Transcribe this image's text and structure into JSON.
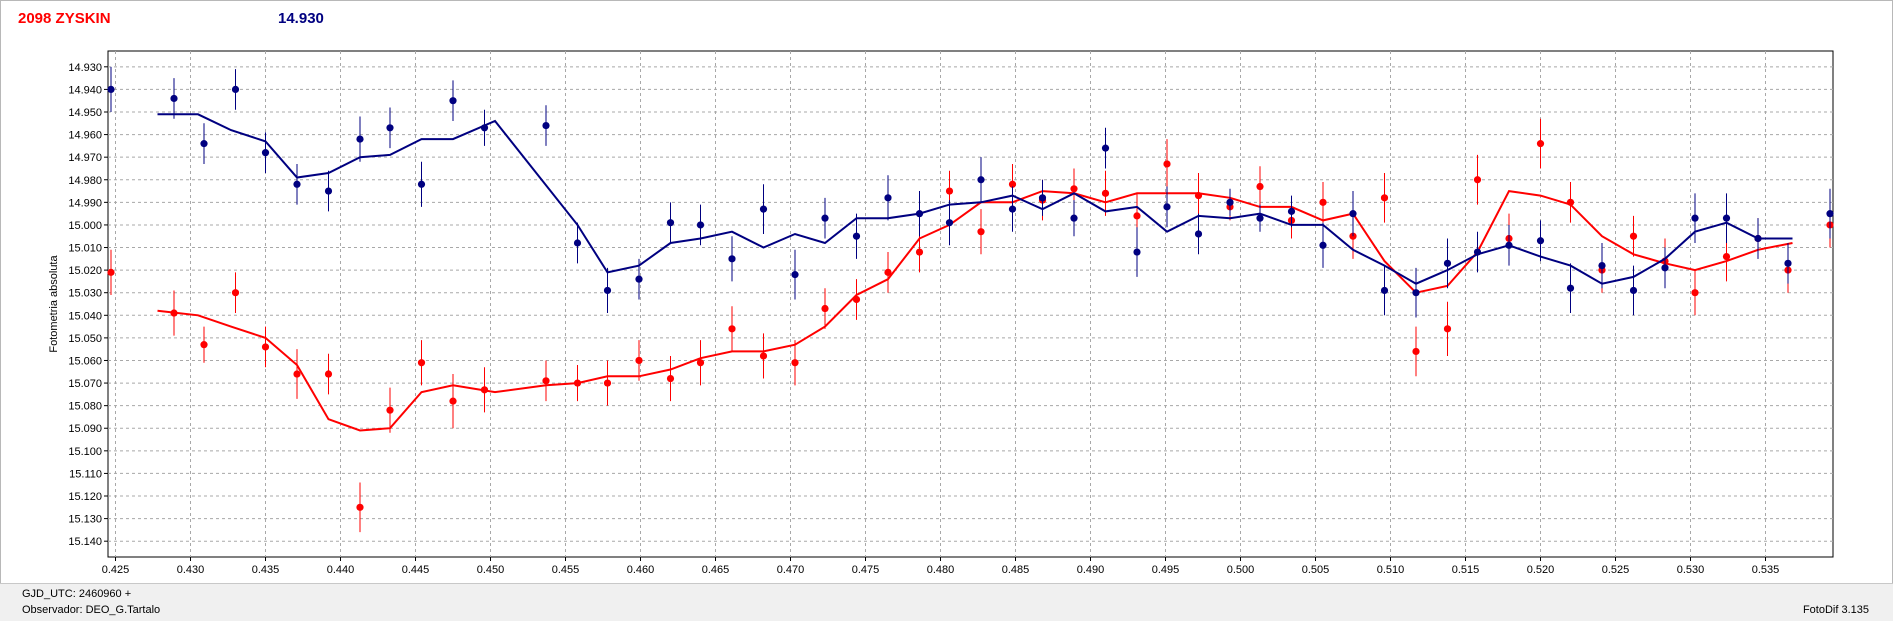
{
  "header": {
    "title": "2098 ZYSKIN",
    "magnitude": "14.930"
  },
  "footer": {
    "gjd": "GJD_UTC: 2460960 +",
    "observer": "Observador: DEO_G.Tartalo",
    "software": "FotoDif 3.135"
  },
  "colors": {
    "title": "#ff0000",
    "series_blue": "#000080",
    "series_red": "#ff0000"
  },
  "chart_data": {
    "type": "scatter",
    "ylabel": "Fotometria absoluta",
    "xlabel": "",
    "xlim": [
      0.4245,
      0.5395
    ],
    "ylim": [
      14.923,
      15.147
    ],
    "y_inverted": true,
    "grid": true,
    "x_ticks": [
      "0.425",
      "0.430",
      "0.435",
      "0.440",
      "0.445",
      "0.450",
      "0.455",
      "0.460",
      "0.465",
      "0.470",
      "0.475",
      "0.480",
      "0.485",
      "0.490",
      "0.495",
      "0.500",
      "0.505",
      "0.510",
      "0.515",
      "0.520",
      "0.525",
      "0.530",
      "0.535"
    ],
    "y_ticks": [
      "14.930",
      "14.940",
      "14.950",
      "14.960",
      "14.970",
      "14.980",
      "14.990",
      "15.000",
      "15.010",
      "15.020",
      "15.030",
      "15.040",
      "15.050",
      "15.060",
      "15.070",
      "15.080",
      "15.090",
      "15.100",
      "15.110",
      "15.120",
      "15.130",
      "15.140"
    ],
    "series": [
      {
        "color": "#000080",
        "points": [
          {
            "x": 0.4247,
            "y": 14.94,
            "err": 0.01
          },
          {
            "x": 0.4289,
            "y": 14.944,
            "err": 0.009
          },
          {
            "x": 0.4309,
            "y": 14.964,
            "err": 0.009
          },
          {
            "x": 0.433,
            "y": 14.94,
            "err": 0.009
          },
          {
            "x": 0.435,
            "y": 14.968,
            "err": 0.009
          },
          {
            "x": 0.4371,
            "y": 14.982,
            "err": 0.009
          },
          {
            "x": 0.4392,
            "y": 14.985,
            "err": 0.009
          },
          {
            "x": 0.4413,
            "y": 14.962,
            "err": 0.01
          },
          {
            "x": 0.4433,
            "y": 14.957,
            "err": 0.009
          },
          {
            "x": 0.4454,
            "y": 14.982,
            "err": 0.01
          },
          {
            "x": 0.4475,
            "y": 14.945,
            "err": 0.009
          },
          {
            "x": 0.4496,
            "y": 14.957,
            "err": 0.008
          },
          {
            "x": 0.4537,
            "y": 14.956,
            "err": 0.009
          },
          {
            "x": 0.4558,
            "y": 15.008,
            "err": 0.009
          },
          {
            "x": 0.4578,
            "y": 15.029,
            "err": 0.01
          },
          {
            "x": 0.4599,
            "y": 15.024,
            "err": 0.009
          },
          {
            "x": 0.462,
            "y": 14.999,
            "err": 0.009
          },
          {
            "x": 0.464,
            "y": 15.0,
            "err": 0.009
          },
          {
            "x": 0.4661,
            "y": 15.015,
            "err": 0.01
          },
          {
            "x": 0.4682,
            "y": 14.993,
            "err": 0.011
          },
          {
            "x": 0.4703,
            "y": 15.022,
            "err": 0.011
          },
          {
            "x": 0.4723,
            "y": 14.997,
            "err": 0.009
          },
          {
            "x": 0.4744,
            "y": 15.005,
            "err": 0.01
          },
          {
            "x": 0.4765,
            "y": 14.988,
            "err": 0.01
          },
          {
            "x": 0.4786,
            "y": 14.995,
            "err": 0.01
          },
          {
            "x": 0.4806,
            "y": 14.999,
            "err": 0.01
          },
          {
            "x": 0.4827,
            "y": 14.98,
            "err": 0.01
          },
          {
            "x": 0.4848,
            "y": 14.993,
            "err": 0.01
          },
          {
            "x": 0.4868,
            "y": 14.988,
            "err": 0.008
          },
          {
            "x": 0.4889,
            "y": 14.997,
            "err": 0.008
          },
          {
            "x": 0.491,
            "y": 14.966,
            "err": 0.009
          },
          {
            "x": 0.4931,
            "y": 15.012,
            "err": 0.011
          },
          {
            "x": 0.4951,
            "y": 14.992,
            "err": 0.009
          },
          {
            "x": 0.4972,
            "y": 15.004,
            "err": 0.009
          },
          {
            "x": 0.4993,
            "y": 14.99,
            "err": 0.006
          },
          {
            "x": 0.5013,
            "y": 14.997,
            "err": 0.006
          },
          {
            "x": 0.5034,
            "y": 14.994,
            "err": 0.007
          },
          {
            "x": 0.5055,
            "y": 15.009,
            "err": 0.01
          },
          {
            "x": 0.5075,
            "y": 14.995,
            "err": 0.01
          },
          {
            "x": 0.5096,
            "y": 15.029,
            "err": 0.011
          },
          {
            "x": 0.5117,
            "y": 15.03,
            "err": 0.011
          },
          {
            "x": 0.5138,
            "y": 15.017,
            "err": 0.011
          },
          {
            "x": 0.5158,
            "y": 15.012,
            "err": 0.009
          },
          {
            "x": 0.5179,
            "y": 15.009,
            "err": 0.009
          },
          {
            "x": 0.52,
            "y": 15.007,
            "err": 0.009
          },
          {
            "x": 0.522,
            "y": 15.028,
            "err": 0.011
          },
          {
            "x": 0.5241,
            "y": 15.018,
            "err": 0.01
          },
          {
            "x": 0.5262,
            "y": 15.029,
            "err": 0.011
          },
          {
            "x": 0.5283,
            "y": 15.019,
            "err": 0.009
          },
          {
            "x": 0.5303,
            "y": 14.997,
            "err": 0.011
          },
          {
            "x": 0.5324,
            "y": 14.997,
            "err": 0.011
          },
          {
            "x": 0.5345,
            "y": 15.006,
            "err": 0.009
          },
          {
            "x": 0.5365,
            "y": 15.017,
            "err": 0.009
          },
          {
            "x": 0.5393,
            "y": 14.995,
            "err": 0.011
          }
        ],
        "trend": [
          {
            "x": 0.4278,
            "y": 14.951
          },
          {
            "x": 0.4305,
            "y": 14.951
          },
          {
            "x": 0.4327,
            "y": 14.958
          },
          {
            "x": 0.435,
            "y": 14.963
          },
          {
            "x": 0.4371,
            "y": 14.979
          },
          {
            "x": 0.4392,
            "y": 14.977
          },
          {
            "x": 0.4413,
            "y": 14.97
          },
          {
            "x": 0.4433,
            "y": 14.969
          },
          {
            "x": 0.4454,
            "y": 14.962
          },
          {
            "x": 0.4475,
            "y": 14.962
          },
          {
            "x": 0.4503,
            "y": 14.954
          },
          {
            "x": 0.4558,
            "y": 15.0
          },
          {
            "x": 0.4578,
            "y": 15.021
          },
          {
            "x": 0.4599,
            "y": 15.018
          },
          {
            "x": 0.462,
            "y": 15.008
          },
          {
            "x": 0.464,
            "y": 15.006
          },
          {
            "x": 0.4661,
            "y": 15.003
          },
          {
            "x": 0.4682,
            "y": 15.01
          },
          {
            "x": 0.4703,
            "y": 15.004
          },
          {
            "x": 0.4723,
            "y": 15.008
          },
          {
            "x": 0.4744,
            "y": 14.997
          },
          {
            "x": 0.4765,
            "y": 14.997
          },
          {
            "x": 0.4786,
            "y": 14.995
          },
          {
            "x": 0.4806,
            "y": 14.991
          },
          {
            "x": 0.4827,
            "y": 14.99
          },
          {
            "x": 0.4848,
            "y": 14.987
          },
          {
            "x": 0.4868,
            "y": 14.993
          },
          {
            "x": 0.4889,
            "y": 14.986
          },
          {
            "x": 0.491,
            "y": 14.994
          },
          {
            "x": 0.4931,
            "y": 14.992
          },
          {
            "x": 0.4951,
            "y": 15.003
          },
          {
            "x": 0.4972,
            "y": 14.996
          },
          {
            "x": 0.4993,
            "y": 14.997
          },
          {
            "x": 0.5013,
            "y": 14.995
          },
          {
            "x": 0.5034,
            "y": 15.0
          },
          {
            "x": 0.5055,
            "y": 15.0
          },
          {
            "x": 0.5075,
            "y": 15.011
          },
          {
            "x": 0.5096,
            "y": 15.018
          },
          {
            "x": 0.5117,
            "y": 15.026
          },
          {
            "x": 0.5138,
            "y": 15.02
          },
          {
            "x": 0.5158,
            "y": 15.013
          },
          {
            "x": 0.5179,
            "y": 15.009
          },
          {
            "x": 0.52,
            "y": 15.014
          },
          {
            "x": 0.522,
            "y": 15.018
          },
          {
            "x": 0.5241,
            "y": 15.026
          },
          {
            "x": 0.5262,
            "y": 15.023
          },
          {
            "x": 0.5283,
            "y": 15.015
          },
          {
            "x": 0.5303,
            "y": 15.003
          },
          {
            "x": 0.5324,
            "y": 14.999
          },
          {
            "x": 0.5345,
            "y": 15.006
          },
          {
            "x": 0.5368,
            "y": 15.006
          }
        ]
      },
      {
        "color": "#ff0000",
        "points": [
          {
            "x": 0.4247,
            "y": 15.021,
            "err": 0.01
          },
          {
            "x": 0.4289,
            "y": 15.039,
            "err": 0.01
          },
          {
            "x": 0.4309,
            "y": 15.053,
            "err": 0.008
          },
          {
            "x": 0.433,
            "y": 15.03,
            "err": 0.009
          },
          {
            "x": 0.435,
            "y": 15.054,
            "err": 0.009
          },
          {
            "x": 0.4371,
            "y": 15.066,
            "err": 0.011
          },
          {
            "x": 0.4392,
            "y": 15.066,
            "err": 0.009
          },
          {
            "x": 0.4413,
            "y": 15.125,
            "err": 0.011
          },
          {
            "x": 0.4433,
            "y": 15.082,
            "err": 0.01
          },
          {
            "x": 0.4454,
            "y": 15.061,
            "err": 0.01
          },
          {
            "x": 0.4475,
            "y": 15.078,
            "err": 0.012
          },
          {
            "x": 0.4496,
            "y": 15.073,
            "err": 0.01
          },
          {
            "x": 0.4537,
            "y": 15.069,
            "err": 0.009
          },
          {
            "x": 0.4558,
            "y": 15.07,
            "err": 0.008
          },
          {
            "x": 0.4578,
            "y": 15.07,
            "err": 0.01
          },
          {
            "x": 0.4599,
            "y": 15.06,
            "err": 0.009
          },
          {
            "x": 0.462,
            "y": 15.068,
            "err": 0.01
          },
          {
            "x": 0.464,
            "y": 15.061,
            "err": 0.01
          },
          {
            "x": 0.4661,
            "y": 15.046,
            "err": 0.01
          },
          {
            "x": 0.4682,
            "y": 15.058,
            "err": 0.01
          },
          {
            "x": 0.4703,
            "y": 15.061,
            "err": 0.01
          },
          {
            "x": 0.4723,
            "y": 15.037,
            "err": 0.009
          },
          {
            "x": 0.4744,
            "y": 15.033,
            "err": 0.009
          },
          {
            "x": 0.4765,
            "y": 15.021,
            "err": 0.009
          },
          {
            "x": 0.4786,
            "y": 15.012,
            "err": 0.009
          },
          {
            "x": 0.4806,
            "y": 14.985,
            "err": 0.009
          },
          {
            "x": 0.4827,
            "y": 15.003,
            "err": 0.01
          },
          {
            "x": 0.4848,
            "y": 14.982,
            "err": 0.009
          },
          {
            "x": 0.4868,
            "y": 14.989,
            "err": 0.009
          },
          {
            "x": 0.4889,
            "y": 14.984,
            "err": 0.009
          },
          {
            "x": 0.491,
            "y": 14.986,
            "err": 0.01
          },
          {
            "x": 0.4931,
            "y": 14.996,
            "err": 0.01
          },
          {
            "x": 0.4951,
            "y": 14.973,
            "err": 0.011
          },
          {
            "x": 0.4972,
            "y": 14.987,
            "err": 0.01
          },
          {
            "x": 0.4993,
            "y": 14.992,
            "err": 0.006
          },
          {
            "x": 0.5013,
            "y": 14.983,
            "err": 0.009
          },
          {
            "x": 0.5034,
            "y": 14.998,
            "err": 0.008
          },
          {
            "x": 0.5055,
            "y": 14.99,
            "err": 0.009
          },
          {
            "x": 0.5075,
            "y": 15.005,
            "err": 0.01
          },
          {
            "x": 0.5096,
            "y": 14.988,
            "err": 0.011
          },
          {
            "x": 0.5117,
            "y": 15.056,
            "err": 0.011
          },
          {
            "x": 0.5138,
            "y": 15.046,
            "err": 0.012
          },
          {
            "x": 0.5158,
            "y": 14.98,
            "err": 0.011
          },
          {
            "x": 0.5179,
            "y": 15.006,
            "err": 0.011
          },
          {
            "x": 0.52,
            "y": 14.964,
            "err": 0.011
          },
          {
            "x": 0.522,
            "y": 14.99,
            "err": 0.009
          },
          {
            "x": 0.5241,
            "y": 15.02,
            "err": 0.01
          },
          {
            "x": 0.5262,
            "y": 15.005,
            "err": 0.009
          },
          {
            "x": 0.5283,
            "y": 15.016,
            "err": 0.01
          },
          {
            "x": 0.5303,
            "y": 15.03,
            "err": 0.01
          },
          {
            "x": 0.5324,
            "y": 15.014,
            "err": 0.011
          },
          {
            "x": 0.5345,
            "y": 15.006,
            "err": 0.009
          },
          {
            "x": 0.5365,
            "y": 15.02,
            "err": 0.01
          },
          {
            "x": 0.5393,
            "y": 15.0,
            "err": 0.01
          }
        ],
        "trend": [
          {
            "x": 0.4278,
            "y": 15.038
          },
          {
            "x": 0.4305,
            "y": 15.04
          },
          {
            "x": 0.4327,
            "y": 15.045
          },
          {
            "x": 0.435,
            "y": 15.05
          },
          {
            "x": 0.4371,
            "y": 15.062
          },
          {
            "x": 0.4392,
            "y": 15.086
          },
          {
            "x": 0.4413,
            "y": 15.091
          },
          {
            "x": 0.4433,
            "y": 15.09
          },
          {
            "x": 0.4454,
            "y": 15.074
          },
          {
            "x": 0.4475,
            "y": 15.071
          },
          {
            "x": 0.4503,
            "y": 15.074
          },
          {
            "x": 0.4537,
            "y": 15.071
          },
          {
            "x": 0.4558,
            "y": 15.07
          },
          {
            "x": 0.4578,
            "y": 15.067
          },
          {
            "x": 0.4599,
            "y": 15.067
          },
          {
            "x": 0.462,
            "y": 15.064
          },
          {
            "x": 0.464,
            "y": 15.059
          },
          {
            "x": 0.4661,
            "y": 15.056
          },
          {
            "x": 0.4682,
            "y": 15.056
          },
          {
            "x": 0.4703,
            "y": 15.053
          },
          {
            "x": 0.4723,
            "y": 15.045
          },
          {
            "x": 0.4744,
            "y": 15.031
          },
          {
            "x": 0.4765,
            "y": 15.024
          },
          {
            "x": 0.4786,
            "y": 15.006
          },
          {
            "x": 0.4806,
            "y": 15.0
          },
          {
            "x": 0.4827,
            "y": 14.99
          },
          {
            "x": 0.4848,
            "y": 14.99
          },
          {
            "x": 0.4868,
            "y": 14.985
          },
          {
            "x": 0.4889,
            "y": 14.986
          },
          {
            "x": 0.491,
            "y": 14.99
          },
          {
            "x": 0.4931,
            "y": 14.986
          },
          {
            "x": 0.4951,
            "y": 14.986
          },
          {
            "x": 0.4972,
            "y": 14.986
          },
          {
            "x": 0.4993,
            "y": 14.988
          },
          {
            "x": 0.5013,
            "y": 14.992
          },
          {
            "x": 0.5034,
            "y": 14.992
          },
          {
            "x": 0.5055,
            "y": 14.998
          },
          {
            "x": 0.5075,
            "y": 14.995
          },
          {
            "x": 0.5096,
            "y": 15.016
          },
          {
            "x": 0.5117,
            "y": 15.03
          },
          {
            "x": 0.5138,
            "y": 15.027
          },
          {
            "x": 0.5158,
            "y": 15.012
          },
          {
            "x": 0.5179,
            "y": 14.985
          },
          {
            "x": 0.52,
            "y": 14.987
          },
          {
            "x": 0.522,
            "y": 14.991
          },
          {
            "x": 0.5241,
            "y": 15.005
          },
          {
            "x": 0.5262,
            "y": 15.013
          },
          {
            "x": 0.5283,
            "y": 15.017
          },
          {
            "x": 0.5303,
            "y": 15.02
          },
          {
            "x": 0.5324,
            "y": 15.016
          },
          {
            "x": 0.5345,
            "y": 15.011
          },
          {
            "x": 0.5368,
            "y": 15.008
          }
        ]
      }
    ]
  }
}
